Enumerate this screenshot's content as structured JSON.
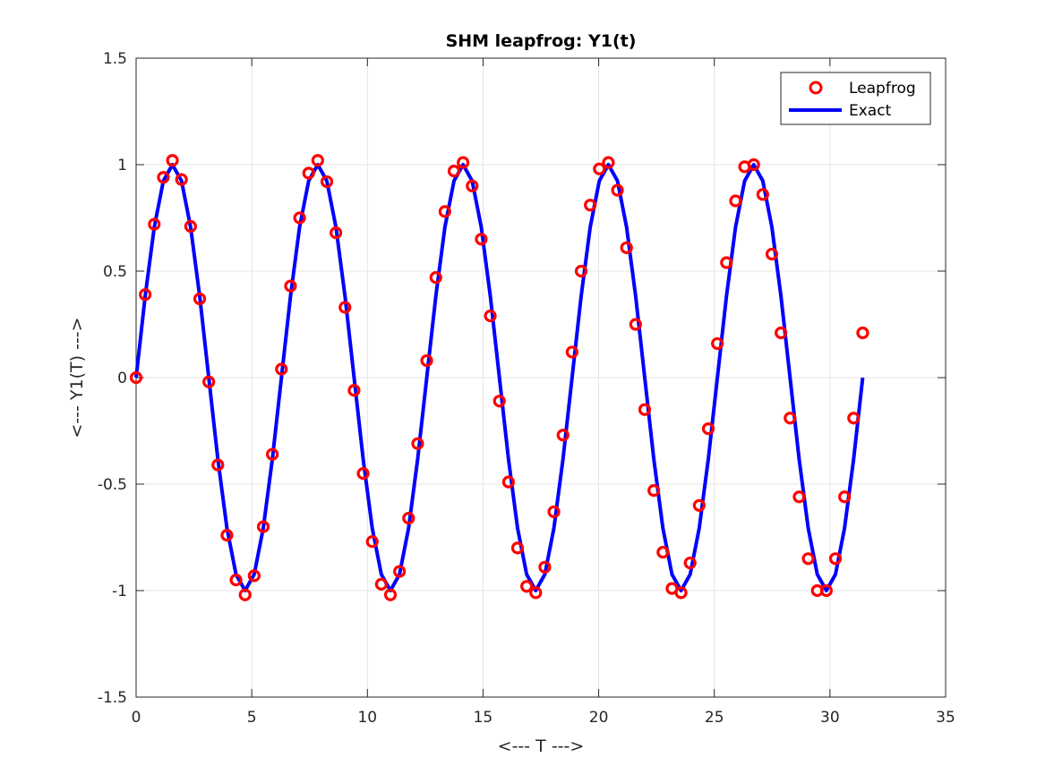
{
  "chart_data": {
    "type": "line",
    "title": "SHM leapfrog: Y1(t)",
    "xlabel": "<--- T --->",
    "ylabel": "<--- Y1(T) --->",
    "xlim": [
      0,
      35
    ],
    "ylim": [
      -1.5,
      1.5
    ],
    "xticks": [
      0,
      5,
      10,
      15,
      20,
      25,
      30,
      35
    ],
    "yticks": [
      -1.5,
      -1,
      -0.5,
      0,
      0.5,
      1,
      1.5
    ],
    "xtick_labels": [
      "0",
      "5",
      "10",
      "15",
      "20",
      "25",
      "30",
      "35"
    ],
    "ytick_labels": [
      "-1.5",
      "-1",
      "-0.5",
      "0",
      "0.5",
      "1",
      "1.5"
    ],
    "grid": true,
    "legend_position": "top-right",
    "series": [
      {
        "name": "Leapfrog",
        "style": "markers",
        "color": "#ff0000",
        "x": [
          0.0,
          0.393,
          0.785,
          1.178,
          1.571,
          1.963,
          2.356,
          2.749,
          3.142,
          3.534,
          3.927,
          4.32,
          4.712,
          5.105,
          5.498,
          5.89,
          6.283,
          6.676,
          7.069,
          7.461,
          7.854,
          8.247,
          8.639,
          9.032,
          9.425,
          9.817,
          10.21,
          10.603,
          10.996,
          11.388,
          11.781,
          12.174,
          12.566,
          12.959,
          13.352,
          13.744,
          14.137,
          14.53,
          14.923,
          15.315,
          15.708,
          16.101,
          16.493,
          16.886,
          17.279,
          17.671,
          18.064,
          18.457,
          18.85,
          19.242,
          19.635,
          20.028,
          20.42,
          20.813,
          21.206,
          21.598,
          21.991,
          22.384,
          22.777,
          23.169,
          23.562,
          23.955,
          24.347,
          24.74,
          25.133,
          25.525,
          25.918,
          26.311,
          26.704,
          27.096,
          27.489,
          27.882,
          28.274,
          28.667,
          29.06,
          29.452,
          29.845,
          30.238,
          30.631,
          31.023,
          31.416
        ],
        "y": [
          0.0,
          0.39,
          0.72,
          0.94,
          1.02,
          0.93,
          0.71,
          0.37,
          -0.02,
          -0.41,
          -0.74,
          -0.95,
          -1.02,
          -0.93,
          -0.7,
          -0.36,
          0.04,
          0.43,
          0.75,
          0.96,
          1.02,
          0.92,
          0.68,
          0.33,
          -0.06,
          -0.45,
          -0.77,
          -0.97,
          -1.02,
          -0.91,
          -0.66,
          -0.31,
          0.08,
          0.47,
          0.78,
          0.97,
          1.01,
          0.9,
          0.65,
          0.29,
          -0.11,
          -0.49,
          -0.8,
          -0.98,
          -1.01,
          -0.89,
          -0.63,
          -0.27,
          0.12,
          0.5,
          0.81,
          0.98,
          1.01,
          0.88,
          0.61,
          0.25,
          -0.15,
          -0.53,
          -0.82,
          -0.99,
          -1.01,
          -0.87,
          -0.6,
          -0.24,
          0.16,
          0.54,
          0.83,
          0.99,
          1.0,
          0.86,
          0.58,
          0.21,
          -0.19,
          -0.56,
          -0.85,
          -1.0,
          -1.0,
          -0.85,
          -0.56,
          -0.19,
          0.21
        ]
      },
      {
        "name": "Exact",
        "style": "line",
        "color": "#0000ff",
        "function": "sin",
        "x_range": [
          0,
          31.416
        ],
        "samples": 81
      }
    ]
  }
}
